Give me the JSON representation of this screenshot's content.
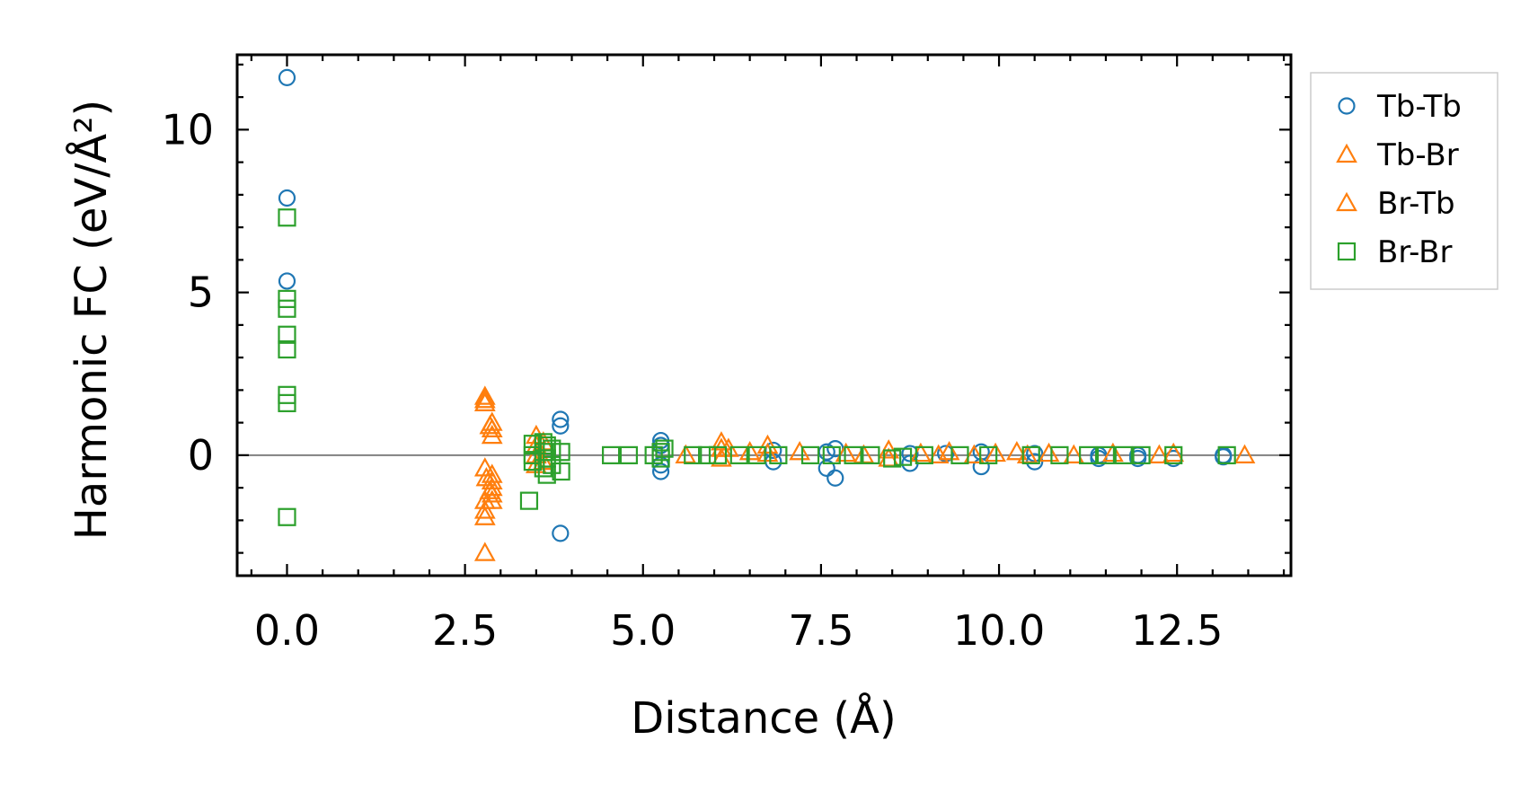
{
  "chart_data": {
    "type": "scatter",
    "xlabel": "Distance (Å)",
    "ylabel": "Harmonic FC (eV/Å²)",
    "xlim": [
      -0.7,
      14.1
    ],
    "ylim": [
      -3.7,
      12.3
    ],
    "x_major_ticks": [
      0.0,
      2.5,
      5.0,
      7.5,
      10.0,
      12.5
    ],
    "x_tick_labels": [
      "0.0",
      "2.5",
      "5.0",
      "7.5",
      "10.0",
      "12.5"
    ],
    "x_minor_step": 0.5,
    "y_major_ticks": [
      0,
      5,
      10
    ],
    "y_tick_labels": [
      "0",
      "5",
      "10"
    ],
    "y_minor_step": 1,
    "zero_line": true,
    "legend": {
      "position": "outside-right-top"
    },
    "series": [
      {
        "name": "Tb-Tb",
        "marker": "circle",
        "color": "#1f77b4",
        "points": [
          [
            0.0,
            11.6
          ],
          [
            0.0,
            7.9
          ],
          [
            0.0,
            5.35
          ],
          [
            3.84,
            1.1
          ],
          [
            3.84,
            0.9
          ],
          [
            3.84,
            -2.4
          ],
          [
            5.25,
            0.45
          ],
          [
            5.25,
            0.3
          ],
          [
            5.25,
            -0.3
          ],
          [
            5.25,
            -0.5
          ],
          [
            6.83,
            0.15
          ],
          [
            6.83,
            -0.2
          ],
          [
            7.58,
            0.1
          ],
          [
            7.58,
            -0.4
          ],
          [
            7.7,
            0.2
          ],
          [
            7.7,
            -0.7
          ],
          [
            8.75,
            0.05
          ],
          [
            8.75,
            -0.25
          ],
          [
            9.25,
            0.05
          ],
          [
            9.75,
            0.1
          ],
          [
            9.75,
            -0.35
          ],
          [
            10.5,
            0.05
          ],
          [
            10.5,
            -0.2
          ],
          [
            11.4,
            0.0
          ],
          [
            11.4,
            -0.1
          ],
          [
            11.95,
            0.0
          ],
          [
            11.95,
            -0.1
          ],
          [
            12.45,
            -0.1
          ],
          [
            13.15,
            0.0
          ],
          [
            13.15,
            -0.05
          ]
        ]
      },
      {
        "name": "Tb-Br",
        "marker": "triangle",
        "color": "#ff7f0e",
        "points": [
          [
            2.78,
            1.8
          ],
          [
            2.78,
            1.6
          ],
          [
            2.78,
            -0.4
          ],
          [
            2.78,
            -1.4
          ],
          [
            2.78,
            -1.7
          ],
          [
            2.78,
            -1.9
          ],
          [
            2.78,
            -3.0
          ],
          [
            2.88,
            1.0
          ],
          [
            2.88,
            0.8
          ],
          [
            2.88,
            0.6
          ],
          [
            2.88,
            -0.6
          ],
          [
            2.88,
            -0.8
          ],
          [
            2.88,
            -1.0
          ],
          [
            2.88,
            -1.2
          ],
          [
            2.88,
            -1.4
          ],
          [
            3.5,
            0.6
          ],
          [
            3.5,
            0.3
          ],
          [
            3.5,
            0.0
          ],
          [
            3.5,
            -0.3
          ],
          [
            5.6,
            0.0
          ],
          [
            6.1,
            0.4
          ],
          [
            6.1,
            0.2
          ],
          [
            6.1,
            -0.1
          ],
          [
            6.5,
            0.1
          ],
          [
            6.75,
            0.3
          ],
          [
            6.75,
            0.05
          ],
          [
            7.2,
            0.1
          ],
          [
            8.1,
            0.0
          ],
          [
            8.45,
            0.15
          ],
          [
            8.45,
            -0.1
          ],
          [
            8.9,
            0.05
          ],
          [
            9.3,
            0.1
          ],
          [
            9.65,
            0.0
          ],
          [
            9.95,
            0.05
          ],
          [
            10.25,
            0.1
          ],
          [
            10.4,
            0.0
          ],
          [
            11.05,
            0.0
          ],
          [
            11.6,
            0.05
          ],
          [
            12.45,
            0.05
          ],
          [
            13.45,
            0.0
          ]
        ]
      },
      {
        "name": "Br-Tb",
        "marker": "triangle",
        "color": "#ff7f0e",
        "points": [
          [
            2.78,
            1.7
          ],
          [
            2.8,
            -0.7
          ],
          [
            2.85,
            0.9
          ],
          [
            2.85,
            -1.1
          ],
          [
            3.6,
            0.4
          ],
          [
            3.6,
            -0.2
          ],
          [
            6.2,
            0.2
          ],
          [
            7.85,
            0.05
          ],
          [
            9.15,
            0.0
          ],
          [
            10.7,
            0.05
          ],
          [
            12.25,
            0.0
          ]
        ]
      },
      {
        "name": "Br-Br",
        "marker": "square",
        "color": "#2ca02c",
        "points": [
          [
            0.0,
            7.3
          ],
          [
            0.0,
            4.8
          ],
          [
            0.0,
            4.5
          ],
          [
            0.0,
            3.7
          ],
          [
            0.0,
            3.25
          ],
          [
            0.0,
            1.85
          ],
          [
            0.0,
            1.6
          ],
          [
            0.0,
            -1.9
          ],
          [
            3.4,
            -1.4
          ],
          [
            3.45,
            0.35
          ],
          [
            3.45,
            0.0
          ],
          [
            3.45,
            -0.2
          ],
          [
            3.6,
            0.4
          ],
          [
            3.6,
            0.1
          ],
          [
            3.6,
            -0.4
          ],
          [
            3.65,
            0.3
          ],
          [
            3.65,
            -0.1
          ],
          [
            3.65,
            -0.6
          ],
          [
            3.72,
            0.2
          ],
          [
            3.72,
            -0.3
          ],
          [
            3.85,
            0.1
          ],
          [
            3.85,
            -0.5
          ],
          [
            4.55,
            0.0
          ],
          [
            4.8,
            0.0
          ],
          [
            5.15,
            0.0
          ],
          [
            5.25,
            0.1
          ],
          [
            5.25,
            -0.1
          ],
          [
            5.3,
            0.2
          ],
          [
            5.7,
            0.0
          ],
          [
            5.9,
            0.0
          ],
          [
            6.05,
            0.0
          ],
          [
            6.35,
            0.0
          ],
          [
            6.6,
            0.0
          ],
          [
            6.9,
            0.0
          ],
          [
            7.35,
            0.0
          ],
          [
            7.65,
            0.0
          ],
          [
            7.95,
            0.0
          ],
          [
            8.2,
            0.0
          ],
          [
            8.5,
            -0.1
          ],
          [
            8.65,
            -0.05
          ],
          [
            8.95,
            0.0
          ],
          [
            9.45,
            0.0
          ],
          [
            9.85,
            0.0
          ],
          [
            10.45,
            0.0
          ],
          [
            10.85,
            0.0
          ],
          [
            11.25,
            0.0
          ],
          [
            11.5,
            0.0
          ],
          [
            11.75,
            0.0
          ],
          [
            12.0,
            0.0
          ],
          [
            12.45,
            0.0
          ],
          [
            13.2,
            0.0
          ]
        ]
      }
    ]
  }
}
